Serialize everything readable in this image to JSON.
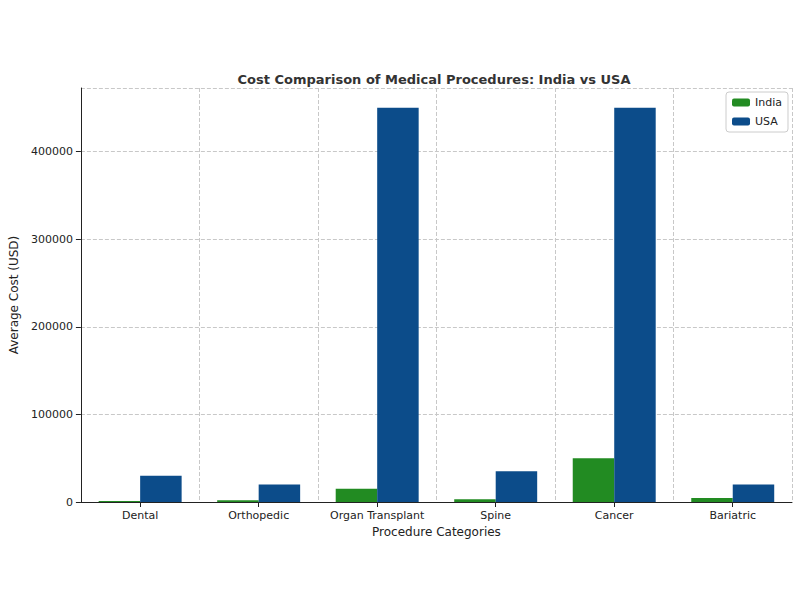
{
  "chart_data": {
    "type": "bar",
    "title": "Cost Comparison of Medical Procedures: India vs USA",
    "x_label": "Procedure Categories",
    "y_label": "Average Cost (USD)",
    "categories": [
      "Dental",
      "Orthopedic",
      "Organ Transplant",
      "Spine",
      "Cancer",
      "Bariatric"
    ],
    "series": [
      {
        "name": "India",
        "color": "#228b22",
        "values": [
          1000,
          2000,
          15000,
          3000,
          50000,
          4500
        ]
      },
      {
        "name": "USA",
        "color": "#0c4c8a",
        "values": [
          30000,
          20000,
          450000,
          35000,
          450000,
          20000
        ]
      }
    ],
    "ylim": [
      0,
      472500
    ],
    "yticks": [
      0,
      100000,
      200000,
      300000,
      400000
    ],
    "grid": true,
    "legend": "upper right"
  }
}
